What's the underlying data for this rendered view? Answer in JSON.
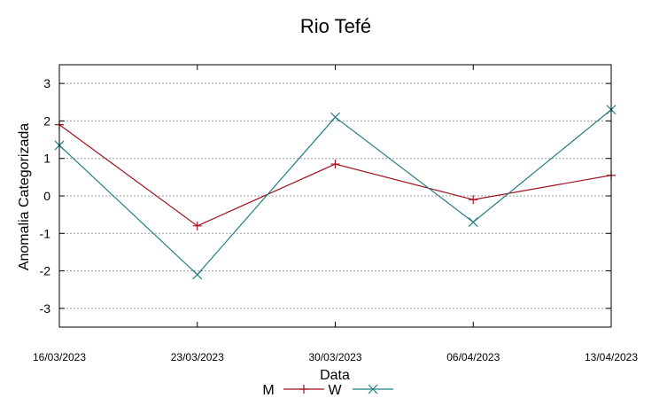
{
  "chart_data": {
    "type": "line",
    "title": "Rio Tefé",
    "xlabel": "Data",
    "ylabel": "Anomalia Categorizada",
    "categories": [
      "16/03/2023",
      "23/03/2023",
      "30/03/2023",
      "06/04/2023",
      "13/04/2023"
    ],
    "ylim": [
      -3.5,
      3.5
    ],
    "yticks": [
      -3,
      -2,
      -1,
      0,
      1,
      2,
      3
    ],
    "grid": true,
    "legend": "bottom",
    "series": [
      {
        "name": "M",
        "color": "#a0131e",
        "marker": "plus",
        "values": [
          1.9,
          -0.8,
          0.85,
          -0.1,
          0.55
        ]
      },
      {
        "name": "W",
        "color": "#1f7f84",
        "marker": "x",
        "values": [
          1.35,
          -2.1,
          2.1,
          -0.7,
          2.3
        ]
      }
    ]
  }
}
